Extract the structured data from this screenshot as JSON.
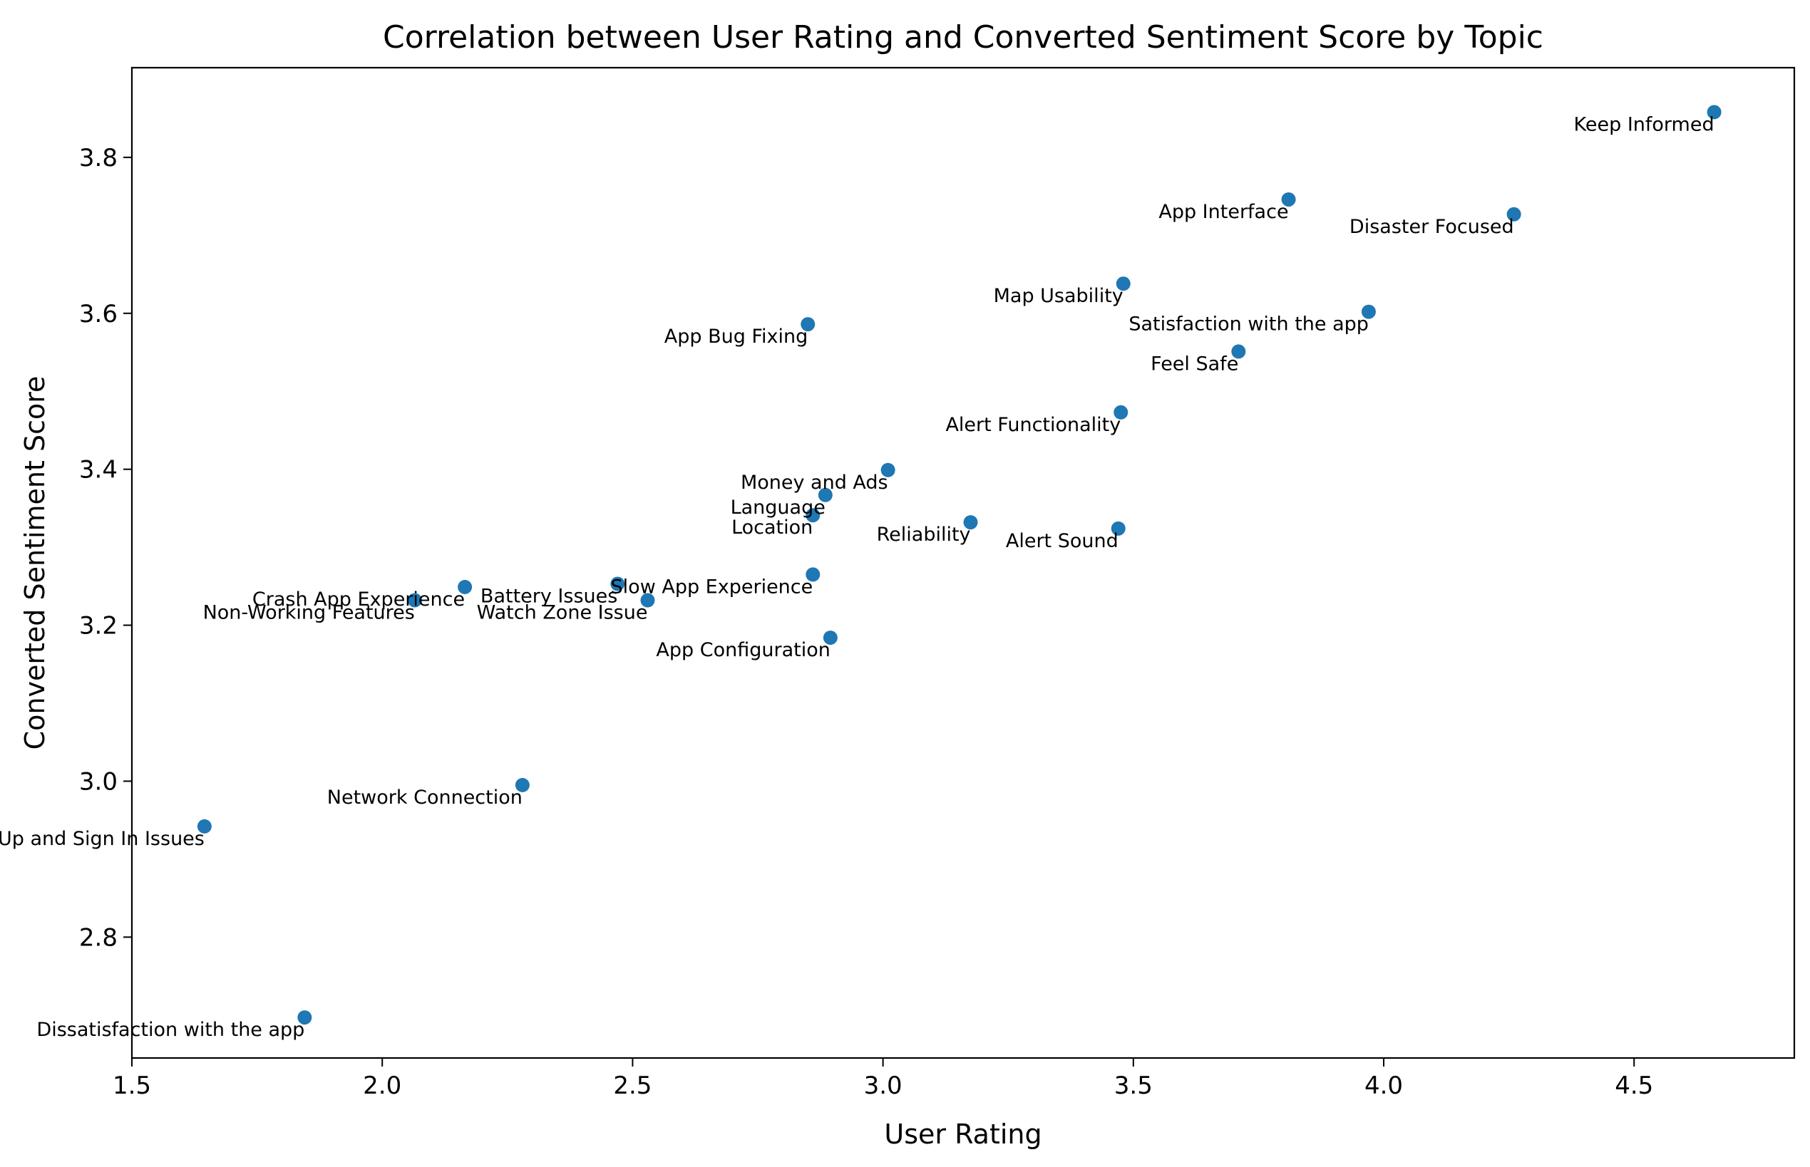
{
  "chart_data": {
    "type": "scatter",
    "title": "Correlation between User Rating and Converted Sentiment Score by Topic",
    "xlabel": "User Rating",
    "ylabel": "Converted Sentiment Score",
    "xlim": [
      1.5,
      4.82
    ],
    "ylim": [
      2.645,
      3.915
    ],
    "xticks": [
      1.5,
      2.0,
      2.5,
      3.0,
      3.5,
      4.0,
      4.5
    ],
    "xtick_labels": [
      "1.5",
      "2.0",
      "2.5",
      "3.0",
      "3.5",
      "4.0",
      "4.5"
    ],
    "yticks": [
      2.8,
      3.0,
      3.2,
      3.4,
      3.6,
      3.8
    ],
    "ytick_labels": [
      "2.8",
      "3.0",
      "3.2",
      "3.4",
      "3.6",
      "3.8"
    ],
    "grid": false,
    "marker_color": "#1f77b4",
    "points": [
      {
        "label": "Keep Informed",
        "x": 4.66,
        "y": 3.858
      },
      {
        "label": "App Interface",
        "x": 3.81,
        "y": 3.746
      },
      {
        "label": "Disaster Focused",
        "x": 4.26,
        "y": 3.727
      },
      {
        "label": "Map Usability",
        "x": 3.48,
        "y": 3.638
      },
      {
        "label": "Satisfaction with the app",
        "x": 3.97,
        "y": 3.602
      },
      {
        "label": "App Bug Fixing",
        "x": 2.85,
        "y": 3.586
      },
      {
        "label": "Feel Safe",
        "x": 3.71,
        "y": 3.551
      },
      {
        "label": "Alert Functionality",
        "x": 3.475,
        "y": 3.473
      },
      {
        "label": "Money and Ads",
        "x": 3.01,
        "y": 3.399
      },
      {
        "label": "Language",
        "x": 2.885,
        "y": 3.367
      },
      {
        "label": "Location",
        "x": 2.86,
        "y": 3.341
      },
      {
        "label": "Reliability",
        "x": 3.175,
        "y": 3.332
      },
      {
        "label": "Alert Sound",
        "x": 3.47,
        "y": 3.324
      },
      {
        "label": "Slow App Experience",
        "x": 2.86,
        "y": 3.265
      },
      {
        "label": "Battery Issues",
        "x": 2.47,
        "y": 3.253
      },
      {
        "label": "Crash App Experience",
        "x": 2.165,
        "y": 3.249
      },
      {
        "label": "Non-Working Features",
        "x": 2.065,
        "y": 3.232
      },
      {
        "label": "Watch Zone Issue",
        "x": 2.53,
        "y": 3.232
      },
      {
        "label": "App Configuration",
        "x": 2.895,
        "y": 3.184
      },
      {
        "label": "Network Connection",
        "x": 2.28,
        "y": 2.995
      },
      {
        "label": "Sign Up and Sign In Issues",
        "x": 1.645,
        "y": 2.942
      },
      {
        "label": "Dissatisfaction with the app",
        "x": 1.845,
        "y": 2.697
      }
    ]
  }
}
